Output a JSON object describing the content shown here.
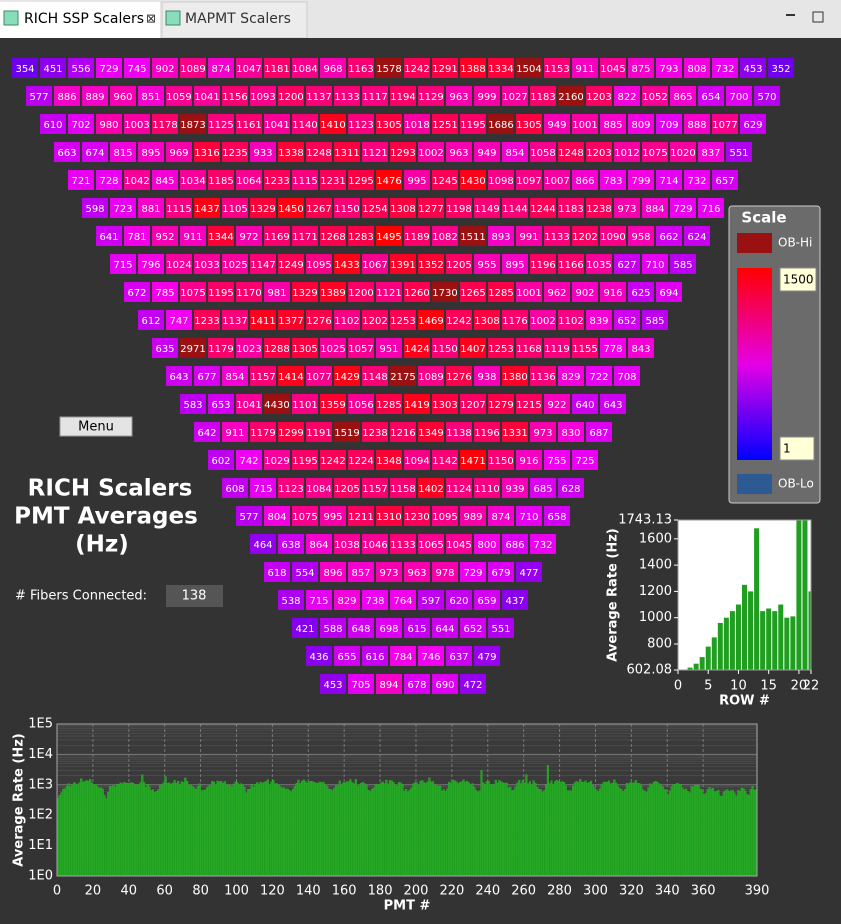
{
  "tabs": [
    "RICH SSP Scalers",
    "MAPMT Scalers"
  ],
  "grid": {
    "rows": [
      [
        354,
        451,
        556,
        729,
        745,
        902,
        1089,
        874,
        1047,
        1181,
        1084,
        968,
        1163,
        1578,
        1242,
        1291,
        1388,
        1334,
        1504,
        1153,
        911,
        1045,
        875,
        793,
        808,
        732,
        453,
        352
      ],
      [
        577,
        886,
        889,
        960,
        851,
        1059,
        1041,
        1156,
        1093,
        1200,
        1137,
        1133,
        1117,
        1194,
        1129,
        963,
        999,
        1027,
        1183,
        2160,
        1203,
        822,
        1052,
        865,
        654,
        700,
        570
      ],
      [
        610,
        702,
        980,
        1003,
        1178,
        1873,
        1125,
        1161,
        1041,
        1140,
        1410,
        1123,
        1305,
        1018,
        1251,
        1195,
        1686,
        1305,
        949,
        1001,
        885,
        809,
        709,
        888,
        1077,
        629
      ],
      [
        663,
        674,
        815,
        895,
        969,
        1316,
        1235,
        933,
        1338,
        1248,
        1311,
        1121,
        1293,
        1002,
        963,
        949,
        854,
        1058,
        1248,
        1203,
        1012,
        1075,
        1020,
        837,
        551
      ],
      [
        721,
        728,
        1042,
        845,
        1034,
        1185,
        1064,
        1233,
        1115,
        1231,
        1295,
        1476,
        995,
        1245,
        1430,
        1098,
        1097,
        1007,
        866,
        783,
        799,
        714,
        732,
        657
      ],
      [
        598,
        723,
        881,
        1115,
        1437,
        1105,
        1329,
        1450,
        1267,
        1150,
        1254,
        1308,
        1277,
        1198,
        1149,
        1144,
        1244,
        1183,
        1238,
        973,
        884,
        729,
        716
      ],
      [
        641,
        781,
        952,
        911,
        1344,
        972,
        1169,
        1171,
        1268,
        1283,
        1495,
        1189,
        1082,
        1511,
        893,
        991,
        1133,
        1202,
        1090,
        958,
        662,
        624
      ],
      [
        715,
        796,
        1024,
        1033,
        1025,
        1147,
        1249,
        1095,
        1433,
        1067,
        1391,
        1352,
        1205,
        955,
        895,
        1196,
        1166,
        1035,
        627,
        710,
        585
      ],
      [
        672,
        785,
        1075,
        1195,
        1170,
        981,
        1329,
        1389,
        1200,
        1121,
        1260,
        1730,
        1265,
        1285,
        1001,
        962,
        902,
        916,
        625,
        694
      ],
      [
        612,
        747,
        1233,
        1137,
        1411,
        1377,
        1276,
        1102,
        1202,
        1253,
        1469,
        1242,
        1308,
        1176,
        1002,
        1102,
        839,
        652,
        585
      ],
      [
        635,
        2971,
        1179,
        1023,
        1288,
        1305,
        1025,
        1057,
        951,
        1424,
        1150,
        1407,
        1253,
        1168,
        1119,
        1155,
        778,
        843
      ],
      [
        643,
        677,
        854,
        1157,
        1414,
        1077,
        1429,
        1148,
        2175,
        1089,
        1276,
        938,
        1380,
        1136,
        829,
        722,
        708
      ],
      [
        583,
        653,
        1041,
        4430,
        1101,
        1359,
        1056,
        1285,
        1419,
        1303,
        1207,
        1279,
        1215,
        922,
        640,
        643
      ],
      [
        642,
        911,
        1179,
        1299,
        1191,
        1519,
        1238,
        1216,
        1349,
        1138,
        1196,
        1331,
        973,
        830,
        687
      ],
      [
        602,
        742,
        1029,
        1195,
        1242,
        1224,
        1348,
        1094,
        1142,
        1471,
        1150,
        916,
        755,
        725
      ],
      [
        608,
        715,
        1123,
        1084,
        1205,
        1157,
        1158,
        1402,
        1124,
        1110,
        939,
        685,
        628
      ],
      [
        577,
        804,
        1075,
        995,
        1211,
        1310,
        1230,
        1095,
        989,
        874,
        710,
        658
      ],
      [
        464,
        638,
        864,
        1038,
        1046,
        1133,
        1065,
        1045,
        800,
        686,
        732
      ],
      [
        618,
        554,
        896,
        857,
        973,
        963,
        978,
        729,
        679,
        477
      ],
      [
        538,
        715,
        829,
        738,
        764,
        597,
        620,
        659,
        437
      ],
      [
        421,
        588,
        648,
        698,
        615,
        644,
        652,
        551
      ],
      [
        436,
        655,
        616,
        784,
        746,
        637,
        479
      ],
      [
        453,
        705,
        894,
        678,
        690,
        472
      ]
    ]
  },
  "scale": {
    "title": "Scale",
    "high_label": "OB-Hi",
    "max": 1500,
    "min": 1,
    "low_label": "OB-Lo"
  },
  "menu": "Menu",
  "title_lines": [
    "RICH Scalers",
    "PMT Averages",
    "(Hz)"
  ],
  "fibers": {
    "label": "# Fibers Connected:",
    "value": 138
  },
  "chart_data": [
    {
      "type": "bar",
      "xlabel": "ROW #",
      "ylabel": "Average Rate (Hz)",
      "color": "#1f9e1f",
      "x": [
        1,
        2,
        3,
        4,
        5,
        6,
        7,
        8,
        9,
        10,
        11,
        12,
        13,
        14,
        15,
        16,
        17,
        18,
        19,
        20,
        21,
        22
      ],
      "values": [
        600,
        620,
        650,
        700,
        780,
        850,
        960,
        1000,
        1050,
        1100,
        1250,
        1200,
        1680,
        1050,
        1070,
        1050,
        1100,
        1000,
        1010,
        1750,
        1750,
        1200
      ],
      "xlim": [
        0,
        22
      ],
      "xticks": [
        0,
        5,
        10,
        15,
        20,
        22
      ],
      "ylim": [
        602.08,
        1743.13
      ],
      "yticks": [
        602.08,
        800,
        1000,
        1200,
        1400,
        1600,
        1743.13
      ]
    },
    {
      "type": "bar",
      "xlabel": "PMT #",
      "ylabel": "Average Rate (Hz)",
      "color": "#1f9e1f",
      "log_scale": true,
      "grid": true,
      "xlim": [
        0,
        390
      ],
      "xticks": [
        0,
        20,
        40,
        60,
        80,
        100,
        120,
        140,
        160,
        180,
        200,
        220,
        240,
        260,
        280,
        300,
        320,
        340,
        360,
        390
      ],
      "ylim": [
        1,
        100000
      ],
      "yticks": [
        {
          "value": 1,
          "label": "1E0"
        },
        {
          "value": 10,
          "label": "1E1"
        },
        {
          "value": 100,
          "label": "1E2"
        },
        {
          "value": 1000,
          "label": "1E3"
        },
        {
          "value": 10000,
          "label": "1E4"
        },
        {
          "value": 100000,
          "label": "1E5"
        }
      ]
    }
  ]
}
